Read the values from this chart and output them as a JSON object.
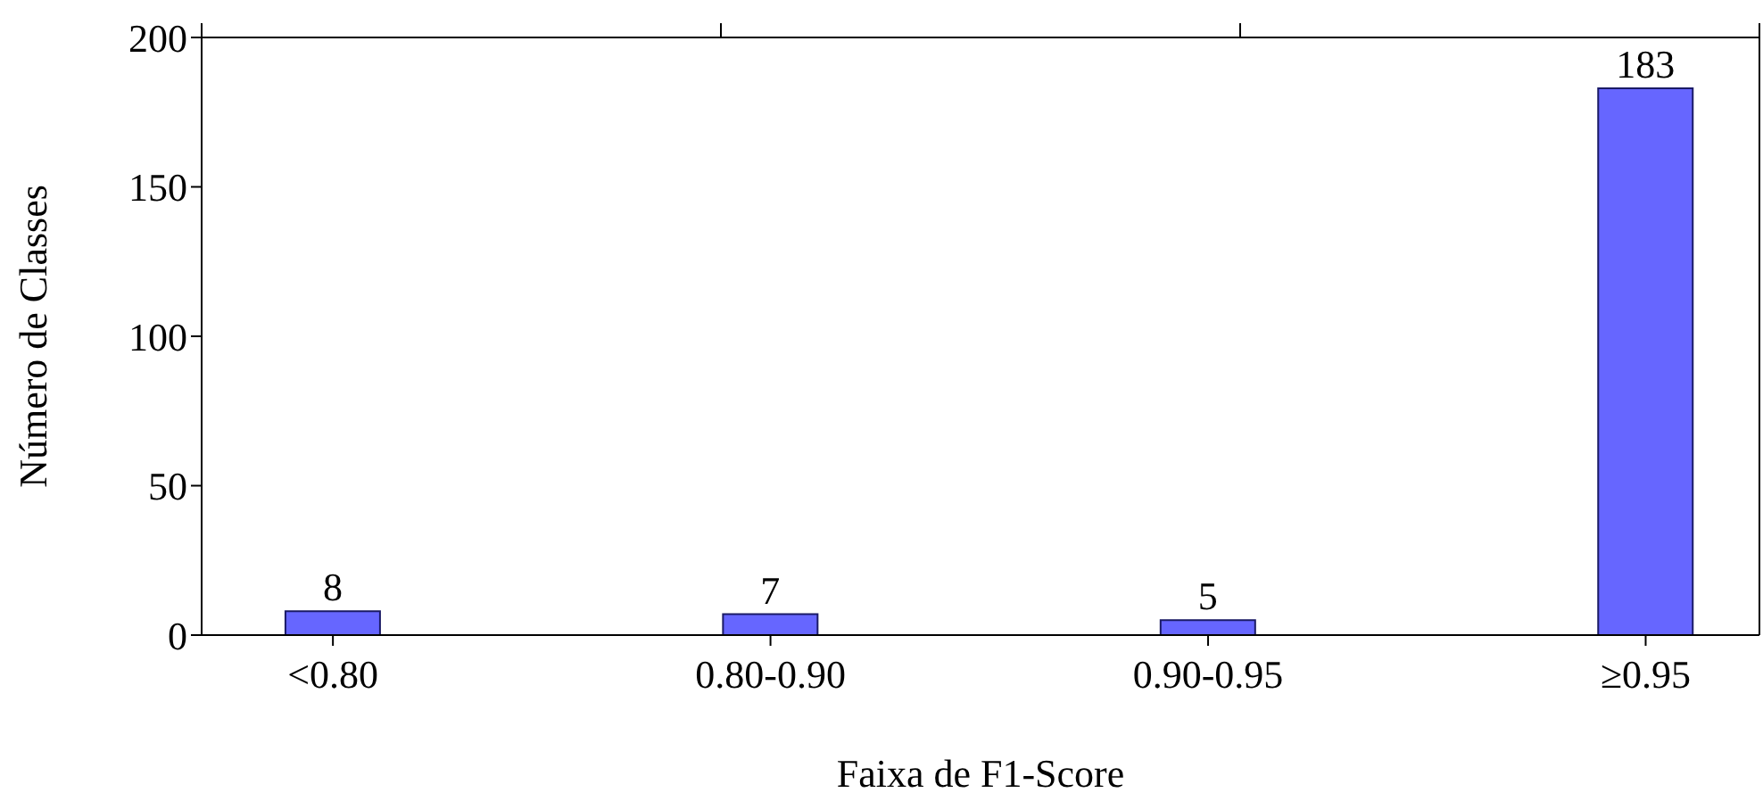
{
  "chart_data": {
    "type": "bar",
    "xlabel": "Faixa de F1-Score",
    "ylabel": "Número de Classes",
    "categories": [
      "<0.80",
      "0.80-0.90",
      "0.90-0.95",
      "≥0.95"
    ],
    "values": [
      8,
      7,
      5,
      183
    ],
    "color": "#6666ff",
    "ylim": [
      0,
      200
    ],
    "yticks": [
      0,
      50,
      100,
      150,
      200
    ],
    "data_labels": true
  }
}
